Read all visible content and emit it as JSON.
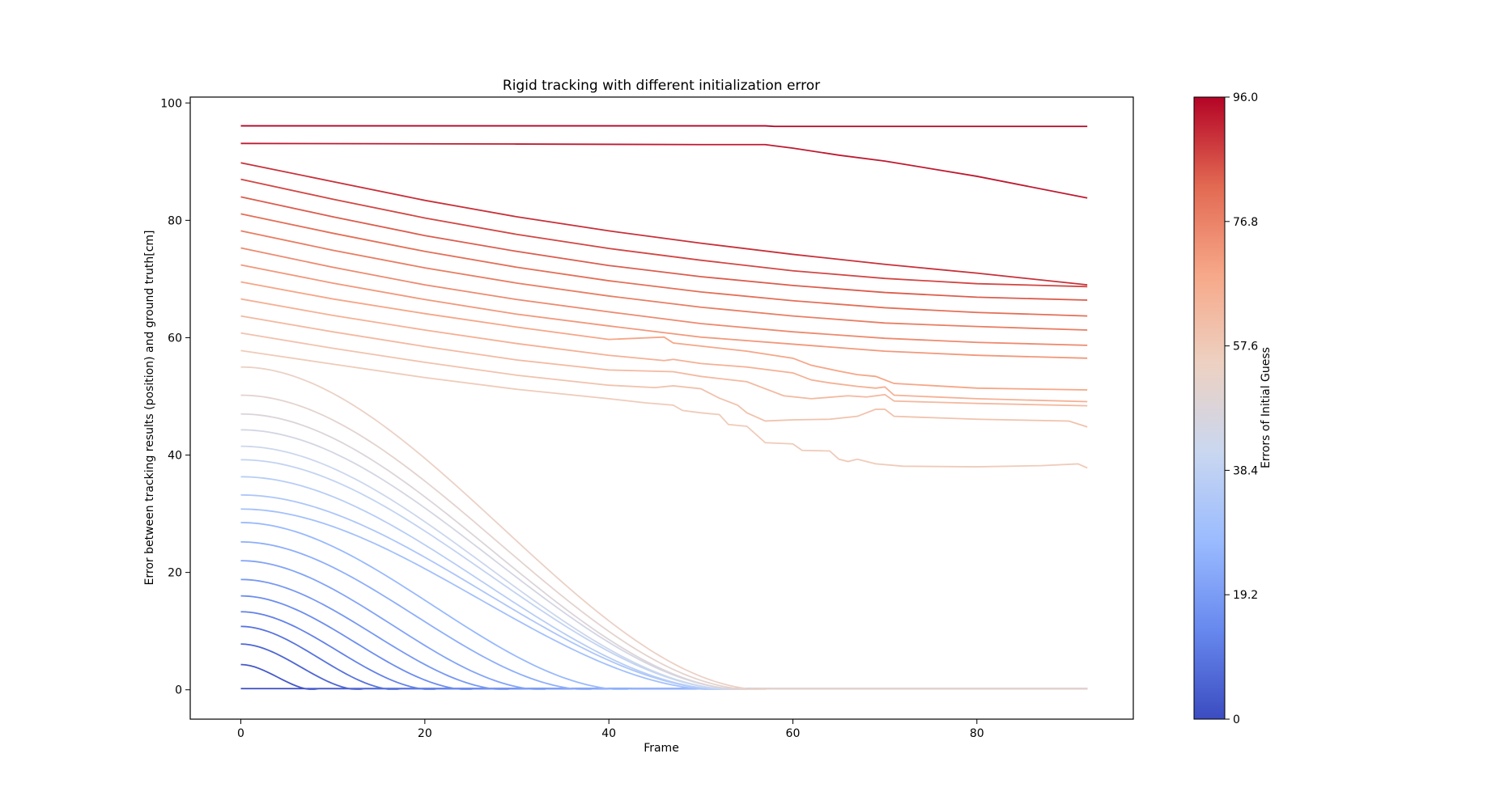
{
  "chart_data": {
    "type": "line",
    "title": "Rigid tracking with different initialization error",
    "xlabel": "Frame",
    "ylabel": "Error between tracking results (position) and ground truth[cm]",
    "xlim": [
      -5.5,
      97
    ],
    "ylim": [
      -5,
      101
    ],
    "xticks": [
      0,
      20,
      40,
      60,
      80
    ],
    "yticks": [
      0,
      20,
      40,
      60,
      80,
      100
    ],
    "grid": false,
    "colormap": "coolwarm",
    "colorbar": {
      "label": "Errors of Initial Guess",
      "range": [
        0,
        96
      ],
      "ticks": [
        "0",
        "19.2",
        "38.4",
        "57.6",
        "76.8",
        "96.0"
      ],
      "colors": [
        "#3b4cc0",
        "#6788ee",
        "#9abbff",
        "#c9d7f0",
        "#edd1c2",
        "#f7a889",
        "#e26952",
        "#b40426"
      ]
    },
    "series_initial_errors": [
      0,
      3,
      6,
      9,
      12,
      15,
      18,
      21,
      24,
      27,
      30,
      33,
      36,
      39,
      42,
      45,
      48,
      51,
      54,
      57,
      60,
      63,
      66,
      69,
      72,
      75,
      78,
      81,
      84,
      87,
      90,
      93,
      96
    ],
    "converging_series": [
      {
        "initial_error": 0,
        "start": 0.2,
        "converge_frame": 0
      },
      {
        "initial_error": 3,
        "start": 4.3,
        "converge_frame": 8
      },
      {
        "initial_error": 6,
        "start": 7.8,
        "converge_frame": 13
      },
      {
        "initial_error": 9,
        "start": 10.8,
        "converge_frame": 17
      },
      {
        "initial_error": 12,
        "start": 13.3,
        "converge_frame": 21
      },
      {
        "initial_error": 15,
        "start": 16.0,
        "converge_frame": 25
      },
      {
        "initial_error": 18,
        "start": 18.8,
        "converge_frame": 29
      },
      {
        "initial_error": 21,
        "start": 22.0,
        "converge_frame": 33
      },
      {
        "initial_error": 24,
        "start": 25.2,
        "converge_frame": 38
      },
      {
        "initial_error": 27,
        "start": 28.5,
        "converge_frame": 42
      },
      {
        "initial_error": 30,
        "start": 30.8,
        "converge_frame": 52
      },
      {
        "initial_error": 33,
        "start": 33.2,
        "converge_frame": 53
      },
      {
        "initial_error": 36,
        "start": 36.3,
        "converge_frame": 53
      },
      {
        "initial_error": 39,
        "start": 39.2,
        "converge_frame": 54
      },
      {
        "initial_error": 42,
        "start": 41.5,
        "converge_frame": 54
      },
      {
        "initial_error": 45,
        "start": 44.3,
        "converge_frame": 55
      },
      {
        "initial_error": 48,
        "start": 47.0,
        "converge_frame": 55
      },
      {
        "initial_error": 51,
        "start": 50.2,
        "converge_frame": 56
      },
      {
        "initial_error": 54,
        "start": 55.0,
        "converge_frame": 57
      }
    ],
    "non_converging_series": [
      {
        "initial_error": 57,
        "points": [
          [
            0,
            57.8
          ],
          [
            10,
            55.5
          ],
          [
            20,
            53.2
          ],
          [
            30,
            51.2
          ],
          [
            40,
            49.6
          ],
          [
            44,
            48.9
          ],
          [
            47,
            48.5
          ],
          [
            48,
            47.6
          ],
          [
            50,
            47.2
          ],
          [
            52,
            46.9
          ],
          [
            53,
            45.2
          ],
          [
            55,
            44.9
          ],
          [
            57,
            42.1
          ],
          [
            60,
            41.9
          ],
          [
            61,
            40.8
          ],
          [
            64,
            40.7
          ],
          [
            65,
            39.3
          ],
          [
            66,
            38.9
          ],
          [
            67,
            39.3
          ],
          [
            69,
            38.5
          ],
          [
            72,
            38.1
          ],
          [
            80,
            38.0
          ],
          [
            87,
            38.2
          ],
          [
            91,
            38.5
          ],
          [
            92,
            37.8
          ]
        ]
      },
      {
        "initial_error": 60,
        "points": [
          [
            0,
            60.8
          ],
          [
            10,
            58.2
          ],
          [
            20,
            55.8
          ],
          [
            30,
            53.6
          ],
          [
            40,
            51.9
          ],
          [
            45,
            51.5
          ],
          [
            47,
            51.8
          ],
          [
            50,
            51.3
          ],
          [
            52,
            49.7
          ],
          [
            54,
            48.5
          ],
          [
            55,
            47.2
          ],
          [
            57,
            45.8
          ],
          [
            60,
            46.0
          ],
          [
            64,
            46.1
          ],
          [
            67,
            46.6
          ],
          [
            69,
            47.8
          ],
          [
            70,
            47.8
          ],
          [
            71,
            46.6
          ],
          [
            80,
            46.1
          ],
          [
            90,
            45.8
          ],
          [
            92,
            44.8
          ]
        ]
      },
      {
        "initial_error": 63,
        "points": [
          [
            0,
            63.7
          ],
          [
            10,
            61.0
          ],
          [
            20,
            58.5
          ],
          [
            30,
            56.2
          ],
          [
            40,
            54.5
          ],
          [
            47,
            54.2
          ],
          [
            50,
            53.4
          ],
          [
            55,
            52.5
          ],
          [
            57,
            51.3
          ],
          [
            59,
            50.1
          ],
          [
            62,
            49.6
          ],
          [
            66,
            50.1
          ],
          [
            68,
            49.9
          ],
          [
            70,
            50.3
          ],
          [
            71,
            49.2
          ],
          [
            80,
            48.8
          ],
          [
            92,
            48.4
          ]
        ]
      },
      {
        "initial_error": 66,
        "points": [
          [
            0,
            66.6
          ],
          [
            10,
            63.8
          ],
          [
            20,
            61.3
          ],
          [
            30,
            59.0
          ],
          [
            40,
            57.0
          ],
          [
            46,
            56.1
          ],
          [
            47,
            56.3
          ],
          [
            50,
            55.6
          ],
          [
            55,
            55.0
          ],
          [
            60,
            54.0
          ],
          [
            62,
            52.8
          ],
          [
            64,
            52.3
          ],
          [
            67,
            51.7
          ],
          [
            69,
            51.4
          ],
          [
            70,
            51.6
          ],
          [
            71,
            50.2
          ],
          [
            80,
            49.6
          ],
          [
            92,
            49.1
          ]
        ]
      },
      {
        "initial_error": 69,
        "points": [
          [
            0,
            69.5
          ],
          [
            10,
            66.6
          ],
          [
            20,
            64.1
          ],
          [
            30,
            61.8
          ],
          [
            40,
            59.7
          ],
          [
            46,
            60.1
          ],
          [
            47,
            59.1
          ],
          [
            55,
            57.7
          ],
          [
            60,
            56.5
          ],
          [
            62,
            55.3
          ],
          [
            65,
            54.3
          ],
          [
            67,
            53.7
          ],
          [
            69,
            53.4
          ],
          [
            71,
            52.2
          ],
          [
            80,
            51.4
          ],
          [
            92,
            51.1
          ]
        ]
      },
      {
        "initial_error": 72,
        "points": [
          [
            0,
            72.4
          ],
          [
            10,
            69.3
          ],
          [
            20,
            66.5
          ],
          [
            30,
            64.0
          ],
          [
            40,
            62.0
          ],
          [
            50,
            60.1
          ],
          [
            60,
            58.9
          ],
          [
            70,
            57.7
          ],
          [
            80,
            57.0
          ],
          [
            92,
            56.5
          ]
        ]
      },
      {
        "initial_error": 75,
        "points": [
          [
            0,
            75.3
          ],
          [
            10,
            72.0
          ],
          [
            20,
            69.0
          ],
          [
            30,
            66.5
          ],
          [
            40,
            64.4
          ],
          [
            50,
            62.4
          ],
          [
            60,
            61.0
          ],
          [
            70,
            59.9
          ],
          [
            80,
            59.2
          ],
          [
            92,
            58.7
          ]
        ]
      },
      {
        "initial_error": 78,
        "points": [
          [
            0,
            78.2
          ],
          [
            10,
            74.9
          ],
          [
            20,
            71.9
          ],
          [
            30,
            69.3
          ],
          [
            40,
            67.1
          ],
          [
            50,
            65.2
          ],
          [
            60,
            63.7
          ],
          [
            70,
            62.5
          ],
          [
            80,
            61.9
          ],
          [
            92,
            61.3
          ]
        ]
      },
      {
        "initial_error": 81,
        "points": [
          [
            0,
            81.1
          ],
          [
            10,
            77.8
          ],
          [
            20,
            74.7
          ],
          [
            30,
            72.0
          ],
          [
            40,
            69.7
          ],
          [
            50,
            67.8
          ],
          [
            60,
            66.3
          ],
          [
            70,
            65.1
          ],
          [
            80,
            64.3
          ],
          [
            92,
            63.7
          ]
        ]
      },
      {
        "initial_error": 84,
        "points": [
          [
            0,
            84.0
          ],
          [
            10,
            80.6
          ],
          [
            20,
            77.4
          ],
          [
            30,
            74.7
          ],
          [
            40,
            72.3
          ],
          [
            50,
            70.4
          ],
          [
            60,
            68.9
          ],
          [
            70,
            67.7
          ],
          [
            80,
            66.9
          ],
          [
            92,
            66.4
          ]
        ]
      },
      {
        "initial_error": 87,
        "points": [
          [
            0,
            87.0
          ],
          [
            10,
            83.6
          ],
          [
            20,
            80.4
          ],
          [
            30,
            77.6
          ],
          [
            40,
            75.2
          ],
          [
            50,
            73.2
          ],
          [
            60,
            71.4
          ],
          [
            70,
            70.1
          ],
          [
            80,
            69.2
          ],
          [
            92,
            68.7
          ]
        ]
      },
      {
        "initial_error": 90,
        "points": [
          [
            0,
            89.8
          ],
          [
            10,
            86.6
          ],
          [
            20,
            83.4
          ],
          [
            30,
            80.6
          ],
          [
            40,
            78.2
          ],
          [
            50,
            76.1
          ],
          [
            60,
            74.2
          ],
          [
            70,
            72.5
          ],
          [
            80,
            71.0
          ],
          [
            92,
            69.0
          ]
        ]
      },
      {
        "initial_error": 93,
        "points": [
          [
            0,
            93.1
          ],
          [
            30,
            93.0
          ],
          [
            50,
            92.9
          ],
          [
            57,
            92.9
          ],
          [
            58,
            92.7
          ],
          [
            60,
            92.3
          ],
          [
            65,
            91.1
          ],
          [
            70,
            90.1
          ],
          [
            80,
            87.5
          ],
          [
            92,
            83.8
          ]
        ]
      },
      {
        "initial_error": 96,
        "points": [
          [
            0,
            96.1
          ],
          [
            57,
            96.1
          ],
          [
            58,
            96.0
          ],
          [
            92,
            96.0
          ]
        ]
      }
    ]
  }
}
